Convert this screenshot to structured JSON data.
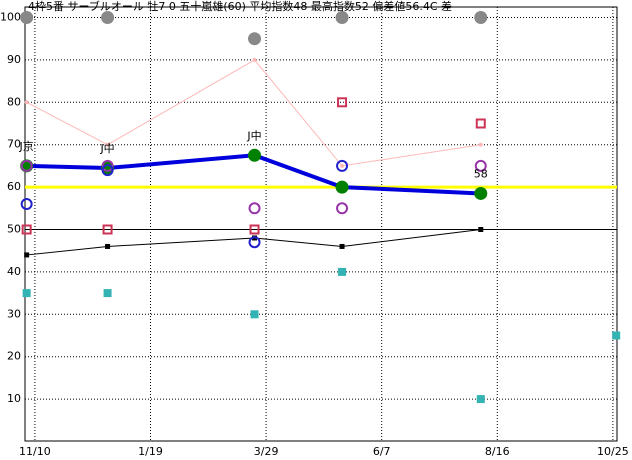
{
  "chart_data": {
    "type": "line",
    "title": "4枠5番 サーブルオール 牡7 0 五十嵐雄(60) 平均指数48 最高指数52 偏差値56.4C 差",
    "x": [
      -5,
      44,
      133,
      186,
      270,
      352
    ],
    "xlim": [
      -6,
      352.5
    ],
    "xticks": [
      {
        "value": 0,
        "label": "11/10"
      },
      {
        "value": 70,
        "label": "1/19"
      },
      {
        "value": 140,
        "label": "3/29"
      },
      {
        "value": 210,
        "label": "6/7"
      },
      {
        "value": 280,
        "label": "8/16"
      },
      {
        "value": 350,
        "label": "10/25"
      }
    ],
    "ylim": [
      0,
      100
    ],
    "yticks": [
      10,
      20,
      30,
      40,
      50,
      60,
      70,
      80,
      90,
      100
    ],
    "grid": true,
    "hlines": [
      {
        "value": 60,
        "color": "#ffff00"
      },
      {
        "value": 50,
        "color": "#000000"
      }
    ],
    "point_labels": [
      "J京",
      "J中",
      "J中",
      null,
      "58",
      null
    ],
    "series": [
      {
        "color": "#ffb8b8",
        "line": true,
        "width": 1,
        "marker": "dot",
        "values": [
          80,
          70,
          90,
          65,
          70,
          null
        ]
      },
      {
        "color": "#000000",
        "line": true,
        "width": 1,
        "marker": "square-small",
        "values": [
          44,
          46,
          48,
          46,
          50,
          null
        ]
      },
      {
        "color": "#0000dd",
        "line": true,
        "width": 4,
        "marker": "filled-circle",
        "marker_color": "#008000",
        "values": [
          65,
          64.5,
          67.5,
          60,
          58.5,
          null
        ]
      },
      {
        "color": "#33b3b3",
        "line": false,
        "marker": "square",
        "values": [
          35,
          35,
          30,
          40,
          10,
          25
        ]
      },
      {
        "color": "#cc3355",
        "line": false,
        "marker": "hollow-square",
        "values": [
          50,
          50,
          50,
          80,
          75,
          null
        ]
      },
      {
        "color": "#9933aa",
        "line": false,
        "marker": "hollow-circle",
        "values": [
          65,
          65,
          55,
          55,
          65,
          null
        ]
      },
      {
        "color": "#2222cc",
        "line": false,
        "marker": "hollow-circle",
        "values": [
          56,
          64,
          47,
          65,
          null,
          null
        ]
      },
      {
        "color": "#888888",
        "line": false,
        "marker": "filled-circle",
        "values": [
          100,
          100,
          95,
          100,
          100,
          null
        ]
      }
    ]
  }
}
